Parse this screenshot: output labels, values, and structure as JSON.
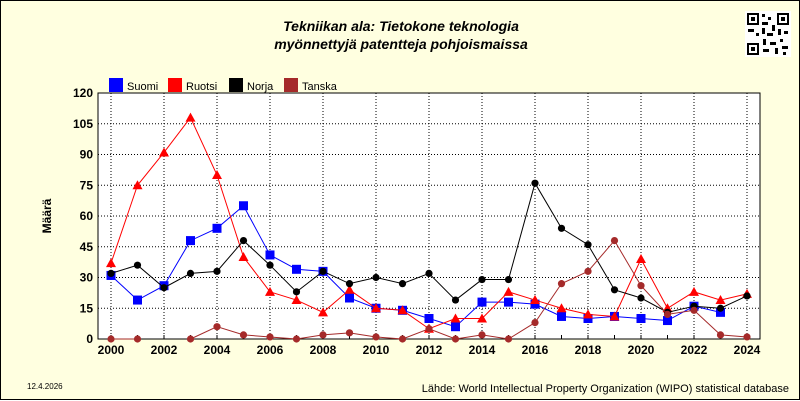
{
  "chart_data": {
    "type": "line",
    "title_lines": [
      "Tekniikan ala: Tietokone teknologia",
      "myönnettyjä patentteja pohjoismaissa"
    ],
    "xlabel": "",
    "ylabel": "Määrä",
    "ylim": [
      0,
      120
    ],
    "yticks": [
      0,
      15,
      30,
      45,
      60,
      75,
      90,
      105,
      120
    ],
    "xlim": [
      2000,
      2024
    ],
    "xticks": [
      2000,
      2002,
      2004,
      2006,
      2008,
      2010,
      2012,
      2014,
      2016,
      2018,
      2020,
      2022,
      2024
    ],
    "grid": true,
    "legend_position": "top-left",
    "x": [
      2000,
      2001,
      2002,
      2003,
      2004,
      2005,
      2006,
      2007,
      2008,
      2009,
      2010,
      2011,
      2012,
      2013,
      2014,
      2015,
      2016,
      2017,
      2018,
      2019,
      2020,
      2021,
      2022,
      2023,
      2024
    ],
    "series": [
      {
        "name": "Suomi",
        "color": "#0000ff",
        "marker": "square",
        "values": [
          31,
          19,
          26,
          48,
          54,
          65,
          41,
          34,
          33,
          20,
          15,
          14,
          10,
          6,
          18,
          18,
          17,
          11,
          10,
          11,
          10,
          9,
          16,
          13,
          null
        ]
      },
      {
        "name": "Ruotsi",
        "color": "#ff0000",
        "marker": "triangle",
        "values": [
          37,
          75,
          91,
          108,
          80,
          40,
          23,
          19,
          13,
          24,
          15,
          14,
          5,
          10,
          10,
          23,
          19,
          15,
          12,
          11,
          39,
          15,
          23,
          19,
          22
        ]
      },
      {
        "name": "Norja",
        "color": "#000000",
        "marker": "circle",
        "values": [
          32,
          36,
          25,
          32,
          33,
          48,
          36,
          23,
          33,
          27,
          30,
          27,
          32,
          19,
          29,
          29,
          76,
          54,
          46,
          24,
          20,
          13,
          16,
          15,
          21
        ]
      },
      {
        "name": "Tanska",
        "color": "#a52a2a",
        "marker": "circle",
        "values": [
          0,
          0,
          null,
          0,
          6,
          2,
          1,
          0,
          2,
          3,
          1,
          0,
          5,
          0,
          2,
          0,
          8,
          27,
          33,
          48,
          26,
          12,
          14,
          2,
          1
        ]
      }
    ]
  },
  "footer": {
    "date": "12.4.2026",
    "source": "Lähde: World Intellectual Property Organization (WIPO) statistical database"
  }
}
